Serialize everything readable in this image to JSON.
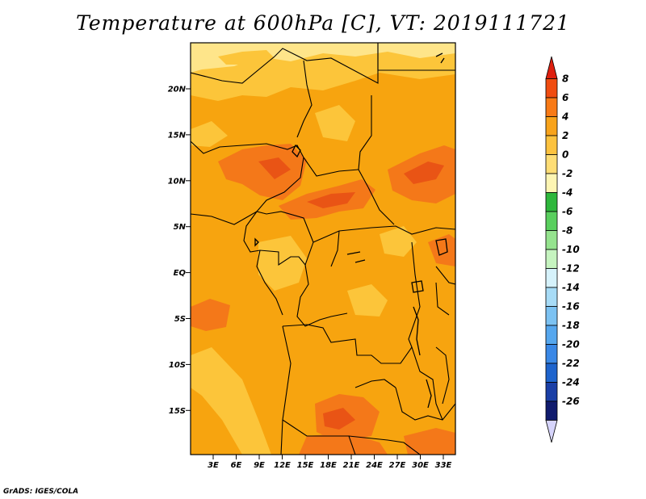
{
  "title": "Temperature at 600hPa [C], VT: 2019111721",
  "credit": "GrADS: IGES/COLA",
  "map": {
    "lat_ticks": [
      "20N",
      "15N",
      "10N",
      "5N",
      "EQ",
      "5S",
      "10S",
      "15S"
    ],
    "lon_ticks": [
      "3E",
      "6E",
      "9E",
      "12E",
      "15E",
      "18E",
      "21E",
      "24E",
      "27E",
      "30E",
      "33E"
    ],
    "colors": {
      "background": "#f7a40f",
      "cool_band": "#fcc53a",
      "pale_band": "#fee58a",
      "warm_patch": "#f47819",
      "hot_patch": "#e95415",
      "border": "#000000"
    }
  },
  "colorbar": {
    "labels": [
      "8",
      "6",
      "4",
      "2",
      "0",
      "-2",
      "-4",
      "-6",
      "-8",
      "-10",
      "-12",
      "-14",
      "-16",
      "-18",
      "-20",
      "-22",
      "-24",
      "-26"
    ],
    "colors": [
      "#de1f0f",
      "#f04c10",
      "#f87a16",
      "#f8a31b",
      "#fcc23f",
      "#fedd75",
      "#fdf5b3",
      "#2eb73c",
      "#59cf5e",
      "#95e38e",
      "#c6f4c0",
      "#d6f2fb",
      "#a7dbf6",
      "#7cc2f2",
      "#56a7ee",
      "#3a88e6",
      "#1e64cd",
      "#1a3fa6",
      "#101b6e",
      "#d6d4fb"
    ]
  }
}
